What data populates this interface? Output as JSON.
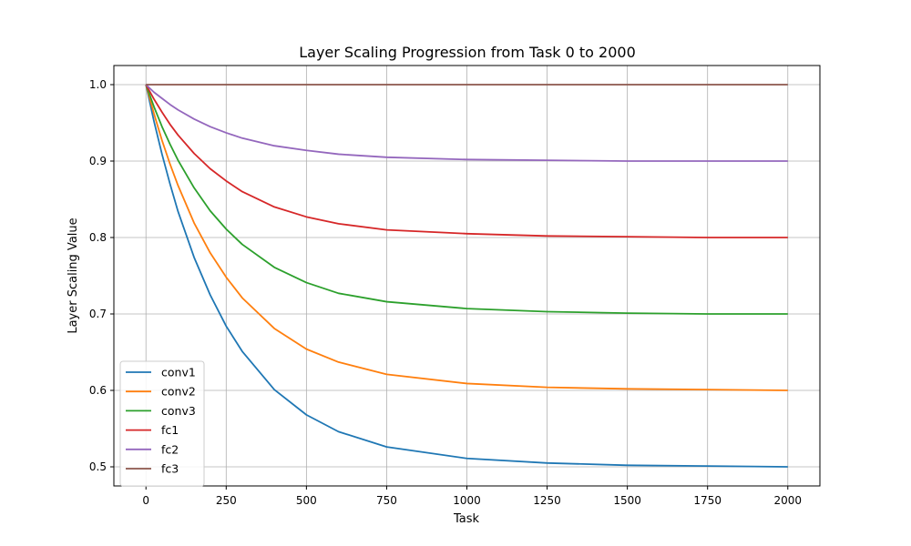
{
  "chart_data": {
    "type": "line",
    "title": "Layer Scaling Progression from Task 0 to 2000",
    "xlabel": "Task",
    "ylabel": "Layer Scaling Value",
    "xlim": [
      -100,
      2100
    ],
    "ylim": [
      0.475,
      1.025
    ],
    "xticks": [
      0,
      250,
      500,
      750,
      1000,
      1250,
      1500,
      1750,
      2000
    ],
    "yticks": [
      0.5,
      0.6,
      0.7,
      0.8,
      0.9,
      1.0
    ],
    "xtick_labels": [
      "0",
      "250",
      "500",
      "750",
      "1000",
      "1250",
      "1500",
      "1750",
      "2000"
    ],
    "ytick_labels": [
      "0.5",
      "0.6",
      "0.7",
      "0.8",
      "0.9",
      "1.0"
    ],
    "grid": true,
    "legend_position": "lower-left",
    "x": [
      0,
      25,
      50,
      75,
      100,
      150,
      200,
      250,
      300,
      400,
      500,
      600,
      750,
      1000,
      1250,
      1500,
      1750,
      2000
    ],
    "series": [
      {
        "name": "conv1",
        "color": "#1f77b4",
        "values": [
          1.0,
          0.952,
          0.909,
          0.87,
          0.834,
          0.774,
          0.725,
          0.684,
          0.651,
          0.601,
          0.568,
          0.546,
          0.526,
          0.511,
          0.505,
          0.502,
          0.501,
          0.5
        ]
      },
      {
        "name": "conv2",
        "color": "#ff7f0e",
        "values": [
          1.0,
          0.962,
          0.927,
          0.896,
          0.868,
          0.819,
          0.78,
          0.748,
          0.721,
          0.681,
          0.654,
          0.637,
          0.621,
          0.609,
          0.604,
          0.602,
          0.601,
          0.6
        ]
      },
      {
        "name": "conv3",
        "color": "#2ca02c",
        "values": [
          1.0,
          0.971,
          0.945,
          0.922,
          0.901,
          0.865,
          0.835,
          0.811,
          0.791,
          0.761,
          0.741,
          0.727,
          0.716,
          0.707,
          0.703,
          0.701,
          0.7,
          0.7
        ]
      },
      {
        "name": "fc1",
        "color": "#d62728",
        "values": [
          1.0,
          0.981,
          0.964,
          0.948,
          0.934,
          0.91,
          0.89,
          0.874,
          0.86,
          0.84,
          0.827,
          0.818,
          0.81,
          0.805,
          0.802,
          0.801,
          0.8,
          0.8
        ]
      },
      {
        "name": "fc2",
        "color": "#9467bd",
        "values": [
          1.0,
          0.99,
          0.982,
          0.974,
          0.967,
          0.955,
          0.945,
          0.937,
          0.93,
          0.92,
          0.914,
          0.909,
          0.905,
          0.902,
          0.901,
          0.9,
          0.9,
          0.9
        ]
      },
      {
        "name": "fc3",
        "color": "#8c564b",
        "values": [
          1.0,
          1.0,
          1.0,
          1.0,
          1.0,
          1.0,
          1.0,
          1.0,
          1.0,
          1.0,
          1.0,
          1.0,
          1.0,
          1.0,
          1.0,
          1.0,
          1.0,
          1.0
        ]
      }
    ]
  }
}
